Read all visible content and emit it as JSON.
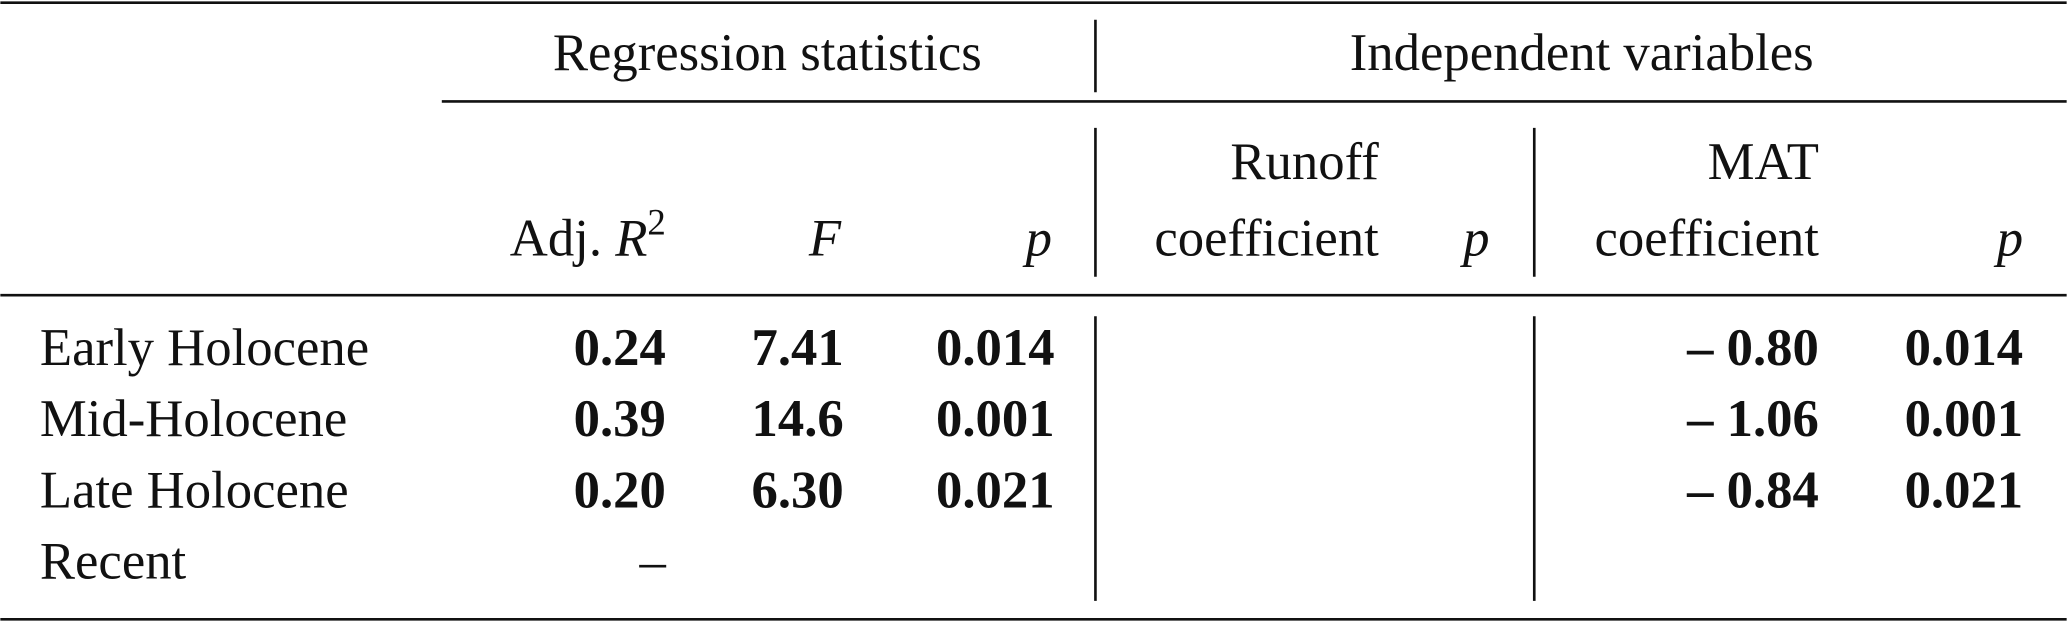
{
  "table": {
    "group_headers": [
      "Regression statistics",
      "Independent variables"
    ],
    "column_headers": {
      "adj_r2": {
        "text": "Adj.",
        "symbol": "R",
        "superscript": "2"
      },
      "f": "F",
      "p1": "p",
      "runoff": [
        "Runoff",
        "coefficient"
      ],
      "p2": "p",
      "mat": [
        "MAT",
        "coefficient"
      ],
      "p3": "p"
    },
    "rows": [
      {
        "label": "Early Holocene",
        "bold": true,
        "cells": [
          "0.24",
          "7.41",
          "0.014",
          null,
          null,
          "– 0.80",
          "0.014"
        ]
      },
      {
        "label": "Mid-Holocene",
        "bold": true,
        "cells": [
          "0.39",
          "14.6",
          "0.001",
          null,
          null,
          "– 1.06",
          "0.001"
        ]
      },
      {
        "label": "Late Holocene",
        "bold": true,
        "cells": [
          "0.20",
          "6.30",
          "0.021",
          null,
          null,
          "– 0.84",
          "0.021"
        ]
      },
      {
        "label": "Recent",
        "bold": false,
        "cells": [
          "–",
          null,
          null,
          null,
          null,
          null,
          null
        ]
      }
    ]
  }
}
